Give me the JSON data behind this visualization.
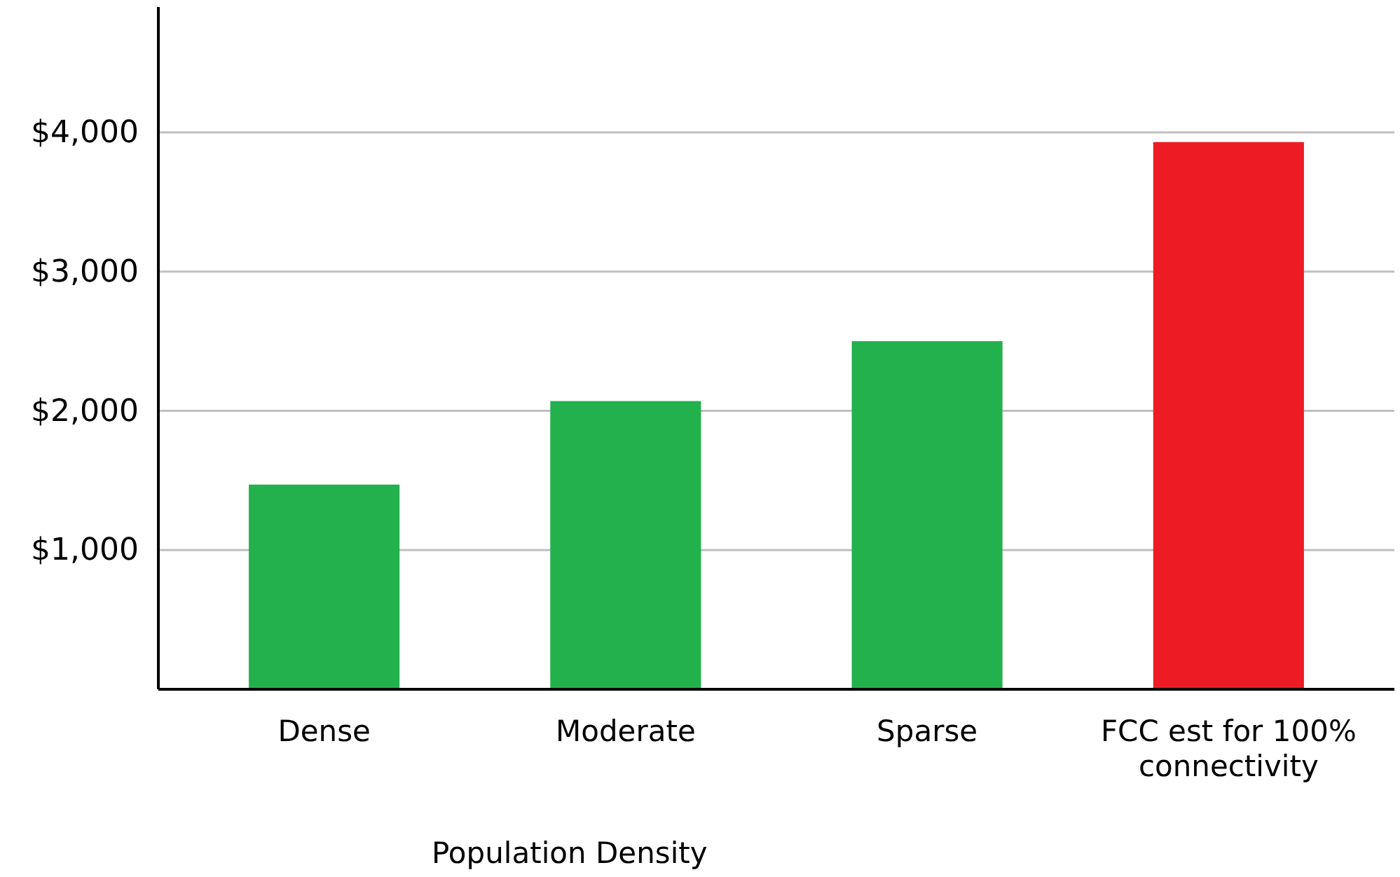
{
  "chart_data": {
    "type": "bar",
    "xlabel": "Population Density",
    "categories": [
      "Dense",
      "Moderate",
      "Sparse",
      "FCC est for 100% connectivity"
    ],
    "values": [
      1470,
      2070,
      2500,
      3930
    ],
    "colors": [
      "#22b14c",
      "#22b14c",
      "#22b14c",
      "#ed1c24"
    ],
    "ylim": [
      0,
      4900
    ],
    "yticks": [
      {
        "value": 1000,
        "label": "$1,000"
      },
      {
        "value": 2000,
        "label": "$2,000"
      },
      {
        "value": 3000,
        "label": "$3,000"
      },
      {
        "value": 4000,
        "label": "$4,000"
      }
    ],
    "grid": "y"
  }
}
